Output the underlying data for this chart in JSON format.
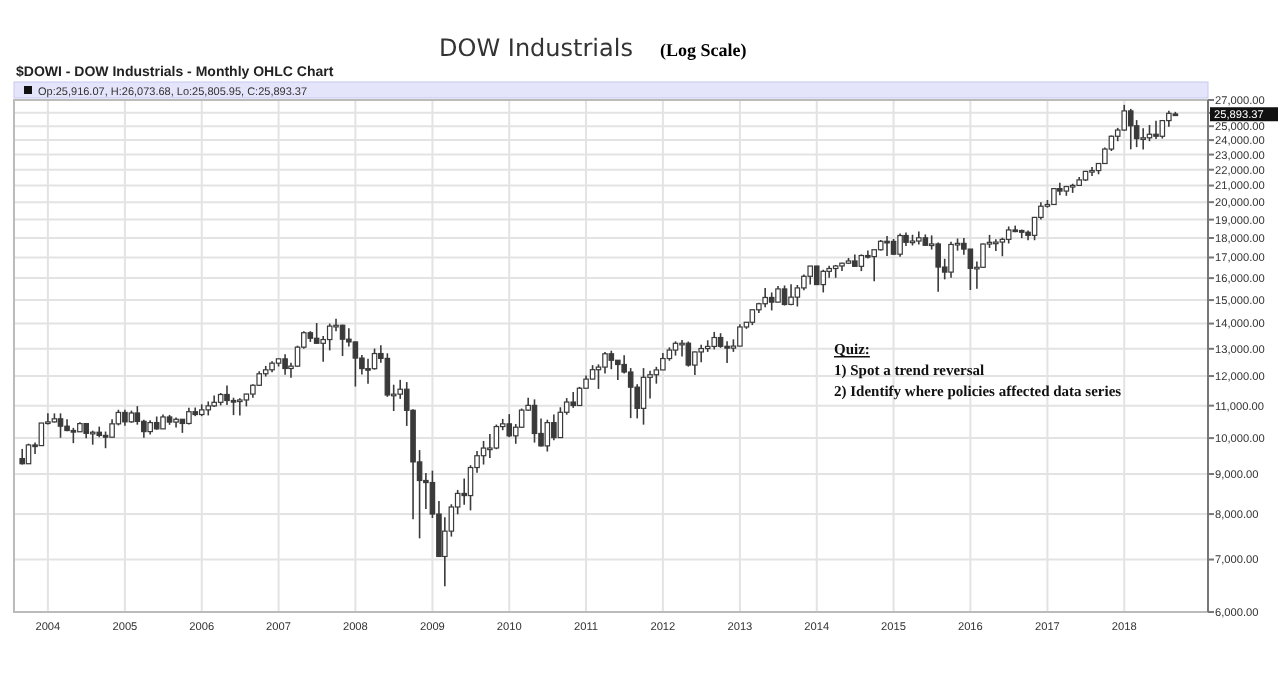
{
  "chart_data": {
    "type": "candlestick",
    "title": "DOW Industrials",
    "subtitle": "$DOWI - DOW Industrials - Monthly OHLC Chart",
    "annotations": [
      "(Log Scale)",
      "Op:25,916.07, H:26,073.68, Lo:25,805.95, C:25,893.37",
      "25,893.37",
      "Quiz:",
      "1) Spot a trend reversal",
      "2) Identify where policies affected data series"
    ],
    "log": true,
    "grid": true,
    "color": "#3a3a3a",
    "xlim": [
      "2003-07-24",
      "2019-02-03"
    ],
    "xticks": [
      "2004",
      "2005",
      "2006",
      "2007",
      "2008",
      "2009",
      "2010",
      "2011",
      "2012",
      "2013",
      "2014",
      "2015",
      "2016",
      "2017",
      "2018"
    ],
    "ylim": [
      6000,
      27000
    ],
    "yticks": [
      {
        "value": 6000,
        "label": "6,000.00"
      },
      {
        "value": 7000,
        "label": "7,000.00"
      },
      {
        "value": 8000,
        "label": "8,000.00"
      },
      {
        "value": 9000,
        "label": "9,000.00"
      },
      {
        "value": 10000,
        "label": "10,000.00"
      },
      {
        "value": 11000,
        "label": "11,000.00"
      },
      {
        "value": 12000,
        "label": "12,000.00"
      },
      {
        "value": 13000,
        "label": "13,000.00"
      },
      {
        "value": 14000,
        "label": "14,000.00"
      },
      {
        "value": 15000,
        "label": "15,000.00"
      },
      {
        "value": 16000,
        "label": "16,000.00"
      },
      {
        "value": 17000,
        "label": "17,000.00"
      },
      {
        "value": 18000,
        "label": "18,000.00"
      },
      {
        "value": 19000,
        "label": "19,000.00"
      },
      {
        "value": 20000,
        "label": "20,000.00"
      },
      {
        "value": 21000,
        "label": "21,000.00"
      },
      {
        "value": 22000,
        "label": "22,000.00"
      },
      {
        "value": 23000,
        "label": "23,000.00"
      },
      {
        "value": 24000,
        "label": "24,000.00"
      },
      {
        "value": 25000,
        "label": "25,000.00"
      },
      {
        "value": 26000,
        "label": null
      },
      {
        "value": 27000,
        "label": "27,000.00"
      }
    ],
    "x": [
      "2003-09",
      "2003-10",
      "2003-11",
      "2003-12",
      "2004-01",
      "2004-02",
      "2004-03",
      "2004-04",
      "2004-05",
      "2004-06",
      "2004-07",
      "2004-08",
      "2004-09",
      "2004-10",
      "2004-11",
      "2004-12",
      "2005-01",
      "2005-02",
      "2005-03",
      "2005-04",
      "2005-05",
      "2005-06",
      "2005-07",
      "2005-08",
      "2005-09",
      "2005-10",
      "2005-11",
      "2005-12",
      "2006-01",
      "2006-02",
      "2006-03",
      "2006-04",
      "2006-05",
      "2006-06",
      "2006-07",
      "2006-08",
      "2006-09",
      "2006-10",
      "2006-11",
      "2006-12",
      "2007-01",
      "2007-02",
      "2007-03",
      "2007-04",
      "2007-05",
      "2007-06",
      "2007-07",
      "2007-08",
      "2007-09",
      "2007-10",
      "2007-11",
      "2007-12",
      "2008-01",
      "2008-02",
      "2008-03",
      "2008-04",
      "2008-05",
      "2008-06",
      "2008-07",
      "2008-08",
      "2008-09",
      "2008-10",
      "2008-11",
      "2008-12",
      "2009-01",
      "2009-02",
      "2009-03",
      "2009-04",
      "2009-05",
      "2009-06",
      "2009-07",
      "2009-08",
      "2009-09",
      "2009-10",
      "2009-11",
      "2009-12",
      "2010-01",
      "2010-02",
      "2010-03",
      "2010-04",
      "2010-05",
      "2010-06",
      "2010-07",
      "2010-08",
      "2010-09",
      "2010-10",
      "2010-11",
      "2010-12",
      "2011-01",
      "2011-02",
      "2011-03",
      "2011-04",
      "2011-05",
      "2011-06",
      "2011-07",
      "2011-08",
      "2011-09",
      "2011-10",
      "2011-11",
      "2011-12",
      "2012-01",
      "2012-02",
      "2012-03",
      "2012-04",
      "2012-05",
      "2012-06",
      "2012-07",
      "2012-08",
      "2012-09",
      "2012-10",
      "2012-11",
      "2012-12",
      "2013-01",
      "2013-02",
      "2013-03",
      "2013-04",
      "2013-05",
      "2013-06",
      "2013-07",
      "2013-08",
      "2013-09",
      "2013-10",
      "2013-11",
      "2013-12",
      "2014-01",
      "2014-02",
      "2014-03",
      "2014-04",
      "2014-05",
      "2014-06",
      "2014-07",
      "2014-08",
      "2014-09",
      "2014-10",
      "2014-11",
      "2014-12",
      "2015-01",
      "2015-02",
      "2015-03",
      "2015-04",
      "2015-05",
      "2015-06",
      "2015-07",
      "2015-08",
      "2015-09",
      "2015-10",
      "2015-11",
      "2015-12",
      "2016-01",
      "2016-02",
      "2016-03",
      "2016-04",
      "2016-05",
      "2016-06",
      "2016-07",
      "2016-08",
      "2016-09",
      "2016-10",
      "2016-11",
      "2016-12",
      "2017-01",
      "2017-02",
      "2017-03",
      "2017-04",
      "2017-05",
      "2017-06",
      "2017-07",
      "2017-08",
      "2017-09",
      "2017-10",
      "2017-11",
      "2017-12",
      "2018-01",
      "2018-02",
      "2018-03",
      "2018-04",
      "2018-05",
      "2018-06",
      "2018-07",
      "2018-08",
      "2018-09"
    ],
    "ohlc": [
      [
        9416,
        9687,
        9253,
        9275
      ],
      [
        9275,
        9838,
        9275,
        9801
      ],
      [
        9801,
        9872,
        9545,
        9782
      ],
      [
        9782,
        10454,
        9782,
        10453
      ],
      [
        10453,
        10754,
        10411,
        10488
      ],
      [
        10488,
        10753,
        10468,
        10583
      ],
      [
        10583,
        10754,
        10010,
        10357
      ],
      [
        10357,
        10571,
        10206,
        10226
      ],
      [
        10226,
        10306,
        9853,
        10188
      ],
      [
        10188,
        10479,
        10187,
        10435
      ],
      [
        10435,
        10437,
        9994,
        10140
      ],
      [
        10140,
        10221,
        9809,
        10174
      ],
      [
        10174,
        10344,
        10025,
        10080
      ],
      [
        10080,
        10195,
        9708,
        10027
      ],
      [
        10027,
        10573,
        10027,
        10428
      ],
      [
        10428,
        10868,
        10382,
        10783
      ],
      [
        10783,
        10869,
        10368,
        10490
      ],
      [
        10490,
        10841,
        10462,
        10766
      ],
      [
        10766,
        10985,
        10403,
        10504
      ],
      [
        10504,
        10552,
        10012,
        10193
      ],
      [
        10193,
        10542,
        10109,
        10467
      ],
      [
        10467,
        10656,
        10249,
        10275
      ],
      [
        10275,
        10720,
        10270,
        10641
      ],
      [
        10641,
        10706,
        10397,
        10482
      ],
      [
        10482,
        10623,
        10319,
        10569
      ],
      [
        10569,
        10573,
        10156,
        10440
      ],
      [
        10440,
        10931,
        10406,
        10806
      ],
      [
        10806,
        10940,
        10666,
        10718
      ],
      [
        10718,
        11043,
        10667,
        10865
      ],
      [
        10865,
        11137,
        10689,
        10993
      ],
      [
        10993,
        11335,
        10961,
        11109
      ],
      [
        11109,
        11416,
        11008,
        11367
      ],
      [
        11367,
        11670,
        11025,
        11168
      ],
      [
        11168,
        11260,
        10699,
        11150
      ],
      [
        11150,
        11242,
        10683,
        11186
      ],
      [
        11186,
        11393,
        10977,
        11381
      ],
      [
        11381,
        11718,
        11262,
        11679
      ],
      [
        11679,
        12167,
        11653,
        12081
      ],
      [
        12081,
        12361,
        11983,
        12222
      ],
      [
        12222,
        12529,
        12137,
        12463
      ],
      [
        12463,
        12622,
        12343,
        12622
      ],
      [
        12622,
        12795,
        12050,
        12269
      ],
      [
        12269,
        12482,
        11939,
        12354
      ],
      [
        12354,
        13120,
        12326,
        13063
      ],
      [
        13063,
        13692,
        13003,
        13628
      ],
      [
        13628,
        13692,
        13266,
        13409
      ],
      [
        13409,
        14022,
        13211,
        13212
      ],
      [
        13212,
        13498,
        12518,
        13358
      ],
      [
        13358,
        14000,
        12939,
        13896
      ],
      [
        13896,
        14198,
        13689,
        13930
      ],
      [
        13930,
        13958,
        12725,
        13372
      ],
      [
        13372,
        13807,
        13090,
        13265
      ],
      [
        13265,
        13279,
        11635,
        12650
      ],
      [
        12650,
        12769,
        12051,
        12266
      ],
      [
        12266,
        12622,
        11731,
        12263
      ],
      [
        12263,
        13010,
        12227,
        12820
      ],
      [
        12820,
        13136,
        12479,
        12638
      ],
      [
        12638,
        12830,
        11288,
        11350
      ],
      [
        11350,
        11698,
        10827,
        11378
      ],
      [
        11378,
        11867,
        11221,
        11544
      ],
      [
        11544,
        11790,
        10365,
        10851
      ],
      [
        10851,
        10882,
        7882,
        9325
      ],
      [
        9325,
        9654,
        7449,
        8829
      ],
      [
        8829,
        9026,
        8118,
        8776
      ],
      [
        8776,
        9088,
        7909,
        8001
      ],
      [
        8001,
        8315,
        7053,
        7063
      ],
      [
        7063,
        7924,
        6470,
        7609
      ],
      [
        7609,
        8234,
        7488,
        8168
      ],
      [
        8168,
        8588,
        7995,
        8500
      ],
      [
        8500,
        8878,
        8221,
        8447
      ],
      [
        8447,
        9234,
        8087,
        9172
      ],
      [
        9172,
        9631,
        9031,
        9496
      ],
      [
        9496,
        9917,
        9253,
        9712
      ],
      [
        9712,
        10119,
        9430,
        9713
      ],
      [
        9713,
        10406,
        9678,
        10345
      ],
      [
        10345,
        10580,
        10235,
        10428
      ],
      [
        10428,
        10730,
        10025,
        10067
      ],
      [
        10067,
        10422,
        9835,
        10325
      ],
      [
        10325,
        10908,
        10302,
        10857
      ],
      [
        10857,
        11258,
        10833,
        11009
      ],
      [
        11009,
        11205,
        9870,
        10137
      ],
      [
        10137,
        10595,
        9758,
        9774
      ],
      [
        9774,
        10555,
        9614,
        10466
      ],
      [
        10466,
        10720,
        9937,
        10015
      ],
      [
        10015,
        10948,
        10012,
        10788
      ],
      [
        10788,
        11247,
        10712,
        11118
      ],
      [
        11118,
        11452,
        10929,
        11006
      ],
      [
        11006,
        11625,
        11006,
        11578
      ],
      [
        11578,
        12020,
        11578,
        11892
      ],
      [
        11892,
        12391,
        11892,
        12226
      ],
      [
        12226,
        12419,
        11555,
        12320
      ],
      [
        12320,
        12876,
        12093,
        12811
      ],
      [
        12811,
        12928,
        12244,
        12570
      ],
      [
        12570,
        12570,
        11862,
        12414
      ],
      [
        12414,
        12753,
        12093,
        12143
      ],
      [
        12143,
        12284,
        10604,
        11614
      ],
      [
        11614,
        11716,
        10597,
        10913
      ],
      [
        10913,
        12284,
        10404,
        11955
      ],
      [
        11955,
        12188,
        11231,
        12046
      ],
      [
        12046,
        12330,
        11735,
        12218
      ],
      [
        12218,
        12842,
        12218,
        12633
      ],
      [
        12633,
        13055,
        12553,
        12952
      ],
      [
        12952,
        13289,
        12743,
        13212
      ],
      [
        13212,
        13338,
        12710,
        13214
      ],
      [
        13214,
        13280,
        12336,
        12393
      ],
      [
        12393,
        12898,
        12035,
        12880
      ],
      [
        12880,
        13159,
        12492,
        13009
      ],
      [
        13009,
        13330,
        12882,
        13091
      ],
      [
        13091,
        13661,
        12977,
        13437
      ],
      [
        13437,
        13610,
        13037,
        13096
      ],
      [
        13096,
        13290,
        12471,
        13026
      ],
      [
        13026,
        13366,
        12884,
        13104
      ],
      [
        13104,
        13970,
        13104,
        13861
      ],
      [
        13861,
        14055,
        13784,
        14054
      ],
      [
        14054,
        14585,
        13937,
        14579
      ],
      [
        14579,
        14888,
        14444,
        14840
      ],
      [
        14840,
        15542,
        14688,
        15116
      ],
      [
        15116,
        15340,
        14551,
        14910
      ],
      [
        14910,
        15634,
        14910,
        15500
      ],
      [
        15500,
        15658,
        14760,
        14810
      ],
      [
        14810,
        15710,
        14777,
        15130
      ],
      [
        15130,
        15680,
        14720,
        15546
      ],
      [
        15546,
        16174,
        15441,
        16086
      ],
      [
        16086,
        16588,
        15703,
        16577
      ],
      [
        16577,
        16589,
        15699,
        15699
      ],
      [
        15699,
        16398,
        15341,
        16322
      ],
      [
        16322,
        16588,
        16016,
        16458
      ],
      [
        16458,
        16632,
        16015,
        16581
      ],
      [
        16581,
        16736,
        16334,
        16717
      ],
      [
        16717,
        16978,
        16675,
        16827
      ],
      [
        16827,
        17152,
        16563,
        16563
      ],
      [
        16563,
        17153,
        16333,
        17098
      ],
      [
        17098,
        17350,
        16945,
        17043
      ],
      [
        17043,
        17395,
        15855,
        17391
      ],
      [
        17391,
        17895,
        17351,
        17828
      ],
      [
        17828,
        18103,
        17068,
        17823
      ],
      [
        17823,
        17951,
        17136,
        17165
      ],
      [
        17165,
        18244,
        17037,
        18133
      ],
      [
        18133,
        18289,
        17585,
        17776
      ],
      [
        17776,
        18175,
        17610,
        17841
      ],
      [
        17841,
        18351,
        17666,
        18011
      ],
      [
        18011,
        18190,
        17596,
        17620
      ],
      [
        17620,
        18138,
        17400,
        17690
      ],
      [
        17690,
        17762,
        15370,
        16528
      ],
      [
        16528,
        16934,
        15942,
        16285
      ],
      [
        16285,
        17800,
        16014,
        17664
      ],
      [
        17664,
        17978,
        17343,
        17720
      ],
      [
        17720,
        17996,
        17138,
        17425
      ],
      [
        17425,
        17425,
        15451,
        16466
      ],
      [
        16466,
        16795,
        15503,
        16517
      ],
      [
        16517,
        17716,
        16511,
        17685
      ],
      [
        17685,
        18168,
        17484,
        17774
      ],
      [
        17774,
        17934,
        17331,
        17787
      ],
      [
        17787,
        18017,
        17063,
        17930
      ],
      [
        17930,
        18623,
        17714,
        18432
      ],
      [
        18432,
        18668,
        18311,
        18401
      ],
      [
        18401,
        18450,
        17992,
        18308
      ],
      [
        18308,
        18399,
        17888,
        18142
      ],
      [
        18142,
        19152,
        17884,
        19124
      ],
      [
        19124,
        19988,
        19000,
        19763
      ],
      [
        19763,
        20126,
        19678,
        19864
      ],
      [
        19864,
        20851,
        19832,
        20812
      ],
      [
        20812,
        21169,
        20413,
        20663
      ],
      [
        20663,
        20982,
        20379,
        20941
      ],
      [
        20941,
        21112,
        20553,
        21009
      ],
      [
        21009,
        21535,
        20994,
        21350
      ],
      [
        21350,
        21929,
        21279,
        21891
      ],
      [
        21891,
        22179,
        21600,
        21948
      ],
      [
        21948,
        22420,
        21709,
        22405
      ],
      [
        22405,
        23485,
        22405,
        23377
      ],
      [
        23377,
        24328,
        23242,
        24272
      ],
      [
        24272,
        24876,
        23921,
        24719
      ],
      [
        24719,
        26617,
        24660,
        26149
      ],
      [
        26149,
        26307,
        23360,
        25029
      ],
      [
        25029,
        25450,
        23509,
        24103
      ],
      [
        24103,
        24858,
        23344,
        24163
      ],
      [
        24163,
        25087,
        23923,
        24416
      ],
      [
        24416,
        25403,
        24077,
        24271
      ],
      [
        24271,
        25462,
        24110,
        25415
      ],
      [
        25415,
        26167,
        24965,
        25965
      ],
      [
        25916.07,
        26073.68,
        25805.95,
        25893.37
      ]
    ]
  }
}
